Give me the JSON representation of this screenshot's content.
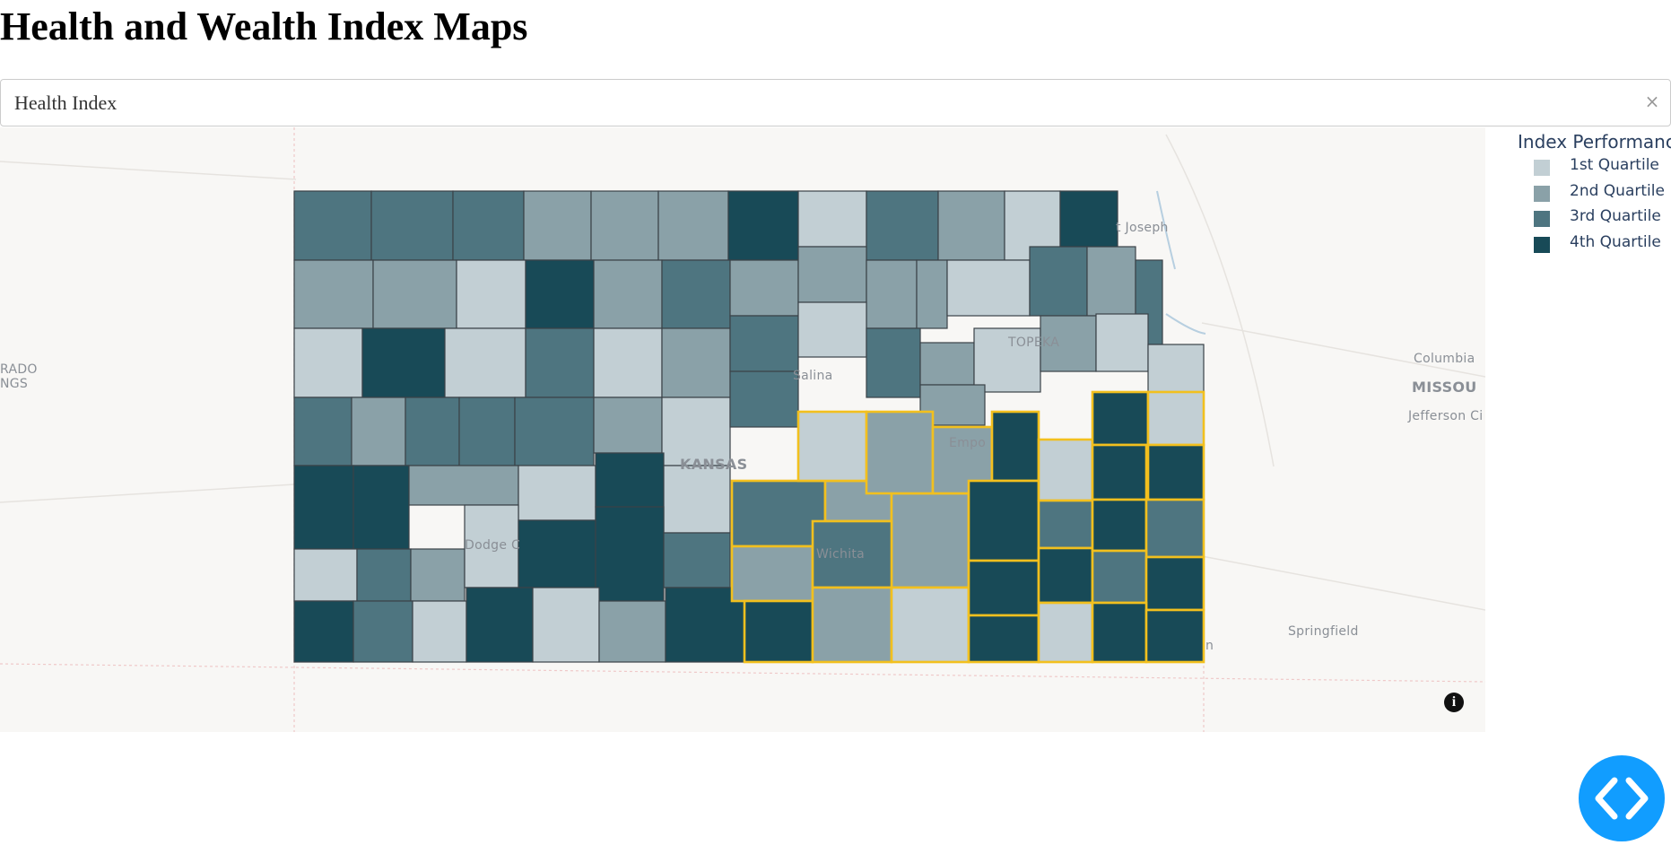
{
  "page": {
    "title": "Health and Wealth Index Maps"
  },
  "dropdown": {
    "value": "Health Index",
    "clear_label": "×"
  },
  "legend": {
    "title": "Index Performance",
    "items": [
      {
        "label": "1st Quartile",
        "color": "#c2cfd4"
      },
      {
        "label": "2nd Quartile",
        "color": "#8aa1a8"
      },
      {
        "label": "3rd Quartile",
        "color": "#4e7580"
      },
      {
        "label": "4th Quartile",
        "color": "#184a57"
      }
    ]
  },
  "map_labels": {
    "colorado": "RADO",
    "springs": "NGS",
    "st_joseph": "t Joseph",
    "topeka": "TOPEKA",
    "salina": "Salina",
    "emporia": "Empo",
    "kansas": "KANSAS",
    "dodge_city": "Dodge C",
    "wichita": "Wichita",
    "columbia": "Columbia",
    "missouri": "MISSOU",
    "jefferson_city": "Jefferson Ci",
    "springfield": "Springfield",
    "joplin": "n"
  },
  "info_icon": {
    "symbol": "i"
  },
  "highlight_color": "#f2c01e",
  "counties": [
    [
      328,
      213,
      414,
      290,
      3
    ],
    [
      414,
      213,
      505,
      290,
      3
    ],
    [
      505,
      213,
      584,
      290,
      3
    ],
    [
      584,
      213,
      659,
      290,
      2
    ],
    [
      659,
      213,
      734,
      290,
      2
    ],
    [
      734,
      213,
      812,
      290,
      2
    ],
    [
      812,
      213,
      890,
      290,
      4
    ],
    [
      890,
      213,
      966,
      275,
      1
    ],
    [
      966,
      213,
      1046,
      290,
      3
    ],
    [
      1046,
      213,
      1120,
      290,
      2
    ],
    [
      1120,
      213,
      1182,
      290,
      1
    ],
    [
      1182,
      213,
      1246,
      275,
      4
    ],
    [
      328,
      290,
      416,
      366,
      2
    ],
    [
      416,
      290,
      509,
      366,
      2
    ],
    [
      509,
      290,
      586,
      366,
      1
    ],
    [
      586,
      290,
      662,
      366,
      4
    ],
    [
      662,
      290,
      738,
      366,
      2
    ],
    [
      738,
      290,
      814,
      366,
      3
    ],
    [
      814,
      290,
      890,
      352,
      2
    ],
    [
      890,
      275,
      966,
      337,
      2
    ],
    [
      966,
      290,
      1022,
      366,
      2
    ],
    [
      1022,
      290,
      1056,
      366,
      2
    ],
    [
      1056,
      290,
      1148,
      352,
      1
    ],
    [
      1148,
      275,
      1212,
      352,
      3
    ],
    [
      1212,
      275,
      1266,
      352,
      2
    ],
    [
      1266,
      290,
      1296,
      384,
      3
    ],
    [
      328,
      366,
      404,
      443,
      1
    ],
    [
      404,
      366,
      496,
      443,
      4
    ],
    [
      496,
      366,
      586,
      443,
      1
    ],
    [
      586,
      366,
      662,
      443,
      3
    ],
    [
      662,
      366,
      738,
      443,
      1
    ],
    [
      738,
      366,
      814,
      443,
      2
    ],
    [
      814,
      352,
      890,
      414,
      3
    ],
    [
      890,
      337,
      966,
      398,
      1
    ],
    [
      966,
      366,
      1026,
      443,
      3
    ],
    [
      1026,
      382,
      1086,
      429,
      2
    ],
    [
      1086,
      366,
      1160,
      437,
      1
    ],
    [
      1160,
      352,
      1222,
      414,
      2
    ],
    [
      1222,
      350,
      1280,
      414,
      1
    ],
    [
      1280,
      384,
      1342,
      437,
      1
    ],
    [
      328,
      443,
      392,
      519,
      3
    ],
    [
      392,
      443,
      452,
      519,
      2
    ],
    [
      452,
      443,
      512,
      519,
      3
    ],
    [
      512,
      443,
      574,
      519,
      3
    ],
    [
      574,
      443,
      662,
      519,
      3
    ],
    [
      662,
      443,
      738,
      505,
      2
    ],
    [
      738,
      443,
      814,
      519,
      1
    ],
    [
      814,
      414,
      890,
      476,
      3
    ],
    [
      1026,
      429,
      1098,
      474,
      2
    ],
    [
      328,
      519,
      394,
      612,
      4
    ],
    [
      394,
      519,
      456,
      612,
      4
    ],
    [
      456,
      519,
      578,
      563,
      2
    ],
    [
      578,
      519,
      664,
      580,
      1
    ],
    [
      664,
      505,
      740,
      565,
      4
    ],
    [
      740,
      519,
      814,
      594,
      1
    ],
    [
      328,
      612,
      398,
      670,
      1
    ],
    [
      398,
      612,
      458,
      670,
      3
    ],
    [
      458,
      612,
      518,
      670,
      2
    ],
    [
      518,
      563,
      578,
      655,
      1
    ],
    [
      578,
      580,
      664,
      655,
      4
    ],
    [
      664,
      565,
      740,
      670,
      4
    ],
    [
      740,
      594,
      814,
      655,
      3
    ],
    [
      328,
      670,
      394,
      738,
      4
    ],
    [
      394,
      670,
      460,
      738,
      3
    ],
    [
      460,
      670,
      520,
      738,
      1
    ],
    [
      520,
      655,
      594,
      738,
      4
    ],
    [
      594,
      655,
      668,
      738,
      1
    ],
    [
      668,
      670,
      742,
      738,
      2
    ],
    [
      742,
      655,
      832,
      738,
      4
    ]
  ],
  "highlighted_counties": [
    [
      816,
      536,
      920,
      609,
      3
    ],
    [
      920,
      536,
      994,
      581,
      2
    ],
    [
      994,
      550,
      1080,
      655,
      2
    ],
    [
      816,
      609,
      906,
      670,
      2
    ],
    [
      906,
      581,
      994,
      655,
      3
    ],
    [
      830,
      670,
      906,
      738,
      4
    ],
    [
      906,
      655,
      994,
      738,
      2
    ],
    [
      994,
      655,
      1080,
      738,
      1
    ],
    [
      890,
      459,
      966,
      536,
      1
    ],
    [
      966,
      459,
      1040,
      550,
      2
    ],
    [
      1040,
      476,
      1106,
      550,
      2
    ],
    [
      1106,
      459,
      1158,
      536,
      4
    ],
    [
      1080,
      536,
      1158,
      625,
      4
    ],
    [
      1080,
      625,
      1158,
      686,
      4
    ],
    [
      1080,
      686,
      1158,
      738,
      4
    ],
    [
      1158,
      490,
      1218,
      558,
      1
    ],
    [
      1218,
      437,
      1280,
      496,
      4
    ],
    [
      1280,
      437,
      1342,
      496,
      1
    ],
    [
      1158,
      558,
      1218,
      611,
      3
    ],
    [
      1218,
      496,
      1278,
      557,
      4
    ],
    [
      1280,
      496,
      1342,
      557,
      4
    ],
    [
      1158,
      611,
      1218,
      672,
      4
    ],
    [
      1218,
      557,
      1278,
      614,
      4
    ],
    [
      1278,
      557,
      1342,
      621,
      3
    ],
    [
      1158,
      672,
      1218,
      738,
      1
    ],
    [
      1218,
      614,
      1278,
      672,
      3
    ],
    [
      1278,
      621,
      1342,
      680,
      4
    ],
    [
      1218,
      672,
      1278,
      738,
      4
    ],
    [
      1278,
      680,
      1342,
      738,
      4
    ]
  ]
}
